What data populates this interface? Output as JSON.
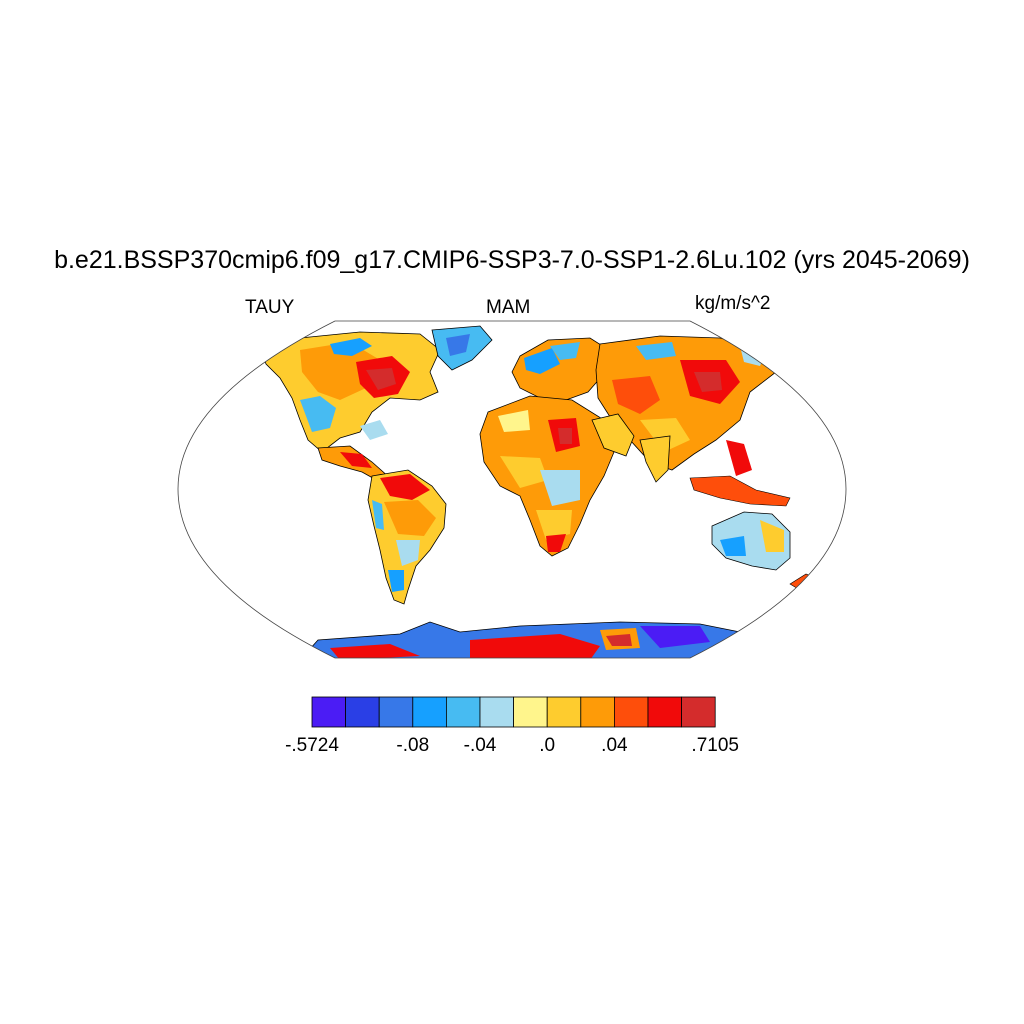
{
  "title": "b.e21.BSSP370cmip6.f09_g17.CMIP6-SSP3-7.0-SSP1-2.6Lu.102 (yrs 2045-2069)",
  "left_label": "TAUY",
  "center_label": "MAM",
  "right_label": "kg/m/s^2",
  "colorbar": {
    "colors": [
      "#4b1cf5",
      "#2a3fe6",
      "#3778e8",
      "#16a0ff",
      "#47bbf2",
      "#a9dcef",
      "#fff58c",
      "#fecc2e",
      "#fe9b08",
      "#fe4e0b",
      "#f10a0a",
      "#d42c2c"
    ],
    "tick_labels": [
      {
        "slot": 0,
        "text": "-.5724"
      },
      {
        "slot": 3,
        "text": "-.08"
      },
      {
        "slot": 5,
        "text": "-.04"
      },
      {
        "slot": 7,
        "text": ".0"
      },
      {
        "slot": 9,
        "text": ".04"
      },
      {
        "slot": 12,
        "text": ".7105"
      }
    ]
  }
}
